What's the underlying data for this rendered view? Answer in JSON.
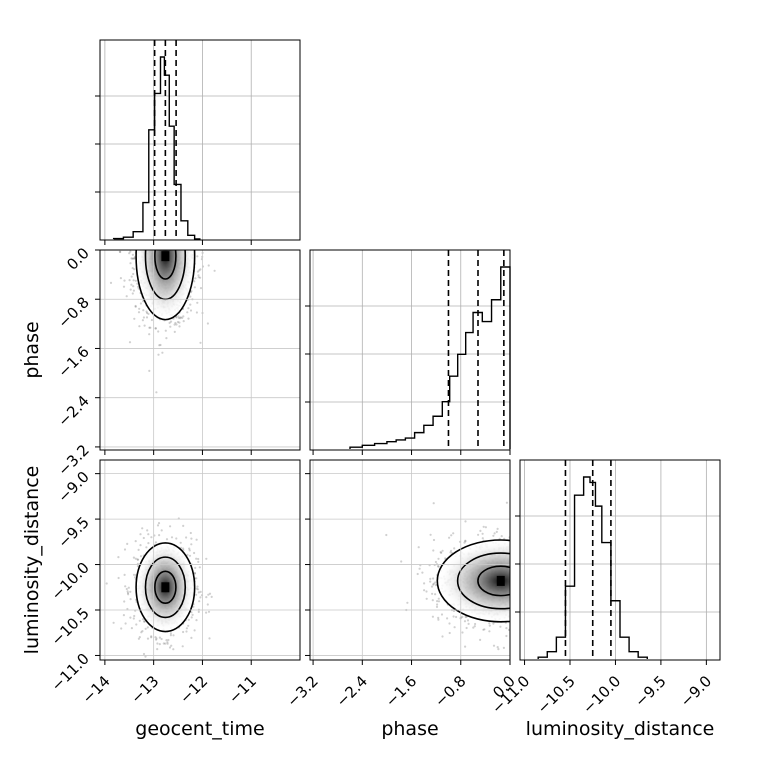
{
  "chart_data": {
    "type": "corner",
    "parameters": [
      "geocent_time",
      "phase",
      "luminosity_distance"
    ],
    "axis_labels": {
      "geocent_time": "geocent_time",
      "phase": "phase",
      "luminosity_distance": "luminosity_distance"
    },
    "ranges": {
      "geocent_time": [
        -14.1,
        -10.0
      ],
      "phase": [
        -3.25,
        0.0
      ],
      "luminosity_distance": [
        -11.05,
        -8.85
      ]
    },
    "ticks": {
      "geocent_time": [
        -14,
        -13,
        -12,
        -11
      ],
      "phase": [
        -3.2,
        -2.4,
        -1.6,
        -0.8,
        0.0
      ],
      "luminosity_distance": [
        -11.0,
        -10.5,
        -10.0,
        -9.5,
        -9.0
      ]
    },
    "tick_labels": {
      "geocent_time": [
        "−14",
        "−13",
        "−12",
        "−11"
      ],
      "phase": [
        "−3.2",
        "−2.4",
        "−1.6",
        "−0.8",
        "0.0"
      ],
      "luminosity_distance": [
        "−11.0",
        "−10.5",
        "−10.0",
        "−9.5",
        "−9.0"
      ]
    },
    "quantiles": {
      "geocent_time": [
        -12.98,
        -12.76,
        -12.54
      ],
      "phase": [
        -1.0,
        -0.52,
        -0.1
      ],
      "luminosity_distance": [
        -10.55,
        -10.25,
        -10.05
      ]
    },
    "histograms": {
      "geocent_time": {
        "edges": [
          -13.82,
          -13.62,
          -13.42,
          -13.22,
          -13.1,
          -12.98,
          -12.86,
          -12.78,
          -12.68,
          -12.58,
          -12.44,
          -12.3,
          -12.16,
          -12.04
        ],
        "counts": [
          0.2,
          1,
          4,
          20,
          60,
          80,
          100,
          90,
          62,
          30,
          10,
          2,
          0
        ]
      },
      "phase": {
        "edges": [
          -2.6,
          -2.4,
          -2.2,
          -2.0,
          -1.85,
          -1.7,
          -1.55,
          -1.4,
          -1.25,
          -1.1,
          -0.98,
          -0.85,
          -0.72,
          -0.6,
          -0.45,
          -0.3,
          -0.15,
          0.0
        ],
        "counts": [
          1,
          2,
          3,
          4,
          5,
          6,
          9,
          13,
          18,
          26,
          40,
          52,
          64,
          75,
          70,
          82,
          100
        ]
      },
      "luminosity_distance": {
        "edges": [
          -10.85,
          -10.75,
          -10.65,
          -10.55,
          -10.45,
          -10.35,
          -10.28,
          -10.22,
          -10.15,
          -10.05,
          -9.95,
          -9.85,
          -9.75,
          -9.65
        ],
        "counts": [
          1,
          4,
          12,
          40,
          90,
          100,
          97,
          84,
          64,
          32,
          12,
          4,
          1
        ]
      }
    },
    "grid": true
  }
}
